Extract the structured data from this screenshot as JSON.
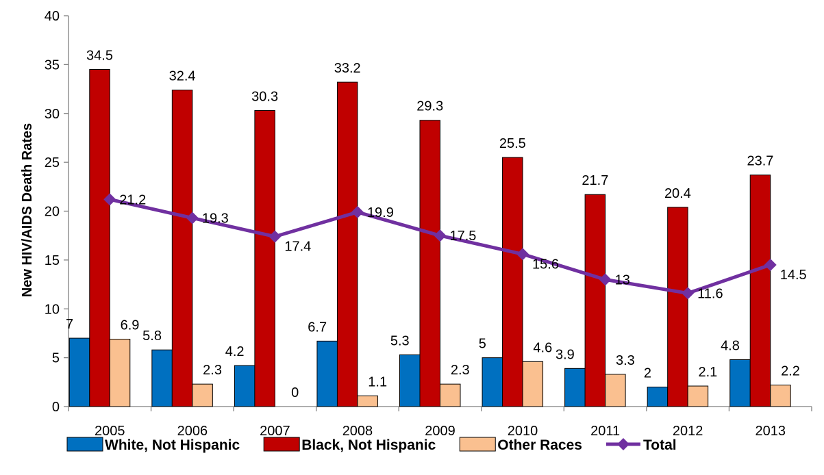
{
  "chart_data": {
    "type": "bar",
    "ylabel": "New HIV/AIDS Death Rates",
    "xlabel": "",
    "ylim": [
      0,
      40
    ],
    "yticks": [
      0,
      5,
      10,
      15,
      20,
      25,
      30,
      35,
      40
    ],
    "grid": false,
    "legend_position": "bottom",
    "categories": [
      "2005",
      "2006",
      "2007",
      "2008",
      "2009",
      "2010",
      "2011",
      "2012",
      "2013"
    ],
    "series": [
      {
        "name": "White, Not Hispanic",
        "kind": "bar",
        "color": "#0070C0",
        "values": [
          7,
          5.8,
          4.2,
          6.7,
          5.3,
          5,
          3.9,
          2,
          4.8
        ],
        "labels": [
          "7",
          "5.8",
          "4.2",
          "6.7",
          "5.3",
          "5",
          "3.9",
          "2",
          "4.8"
        ]
      },
      {
        "name": "Black, Not Hispanic",
        "kind": "bar",
        "color": "#C00000",
        "values": [
          34.5,
          32.4,
          30.3,
          33.2,
          29.3,
          25.5,
          21.7,
          20.4,
          23.7
        ],
        "labels": [
          "34.5",
          "32.4",
          "30.3",
          "33.2",
          "29.3",
          "25.5",
          "21.7",
          "20.4",
          "23.7"
        ]
      },
      {
        "name": "Other Races",
        "kind": "bar",
        "color": "#FAC090",
        "values": [
          6.9,
          2.3,
          0,
          1.1,
          2.3,
          4.6,
          3.3,
          2.1,
          2.2
        ],
        "labels": [
          "6.9",
          "2.3",
          "0",
          "1.1",
          "2.3",
          "4.6",
          "3.3",
          "2.1",
          "2.2"
        ]
      },
      {
        "name": "Total",
        "kind": "line",
        "color": "#7030A0",
        "values": [
          21.2,
          19.3,
          17.4,
          19.9,
          17.5,
          15.6,
          13,
          11.6,
          14.5
        ],
        "labels": [
          "21.2",
          "19.3",
          "17.4",
          "19.9",
          "17.5",
          "15.6",
          "13",
          "11.6",
          "14.5"
        ]
      }
    ]
  }
}
